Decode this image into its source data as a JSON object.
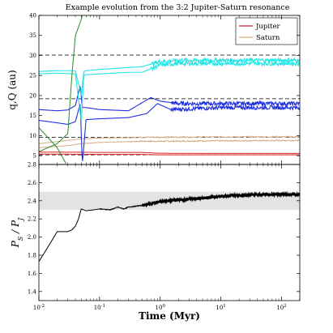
{
  "figure": {
    "title": "Example evolution from the 3:2 Jupiter-Saturn resonance",
    "xlabel": "Time (Myr)"
  },
  "chart_data": [
    {
      "type": "line",
      "name": "top-panel",
      "ylabel": "q,Q (au)",
      "xscale": "log",
      "xlim": [
        0.01,
        200
      ],
      "ylim": [
        2.8,
        40
      ],
      "yticks": [
        5,
        10,
        15,
        20,
        25,
        30,
        35,
        40
      ],
      "xtick_labels": [],
      "legend_position": "top-right",
      "legend": [
        {
          "label": "Jupiter",
          "color": "#dd2020"
        },
        {
          "label": "Saturn",
          "color": "#d8b08c"
        }
      ],
      "reference_lines": [
        5.2,
        9.6,
        19.2,
        30.1
      ],
      "colors": {
        "jupiter": "#dd2020",
        "saturn": "#d8b08c",
        "uranus": "#1f2fe0",
        "neptune": "#22e5e5",
        "ejected": "#2a8a2a"
      },
      "series": [
        {
          "key": "jupiter_q",
          "color": "#dd2020",
          "x": [
            0.01,
            0.05,
            0.1,
            0.5,
            1,
            10,
            200
          ],
          "y": [
            5.4,
            5.35,
            5.3,
            5.3,
            5.2,
            5.2,
            5.2
          ]
        },
        {
          "key": "jupiter_Q",
          "color": "#dd2020",
          "x": [
            0.01,
            0.05,
            0.1,
            0.5,
            1,
            10,
            200
          ],
          "y": [
            5.9,
            5.85,
            5.8,
            5.8,
            5.6,
            5.55,
            5.55
          ]
        },
        {
          "key": "saturn_q",
          "color": "#d8b08c",
          "x": [
            0.01,
            0.03,
            0.05,
            0.1,
            0.3,
            0.5,
            1,
            10,
            200
          ],
          "y": [
            7.0,
            7.5,
            8.0,
            8.3,
            8.5,
            8.6,
            8.6,
            8.7,
            8.8
          ]
        },
        {
          "key": "saturn_Q",
          "color": "#d8b08c",
          "x": [
            0.01,
            0.03,
            0.05,
            0.1,
            0.3,
            0.5,
            1,
            10,
            200
          ],
          "y": [
            8.0,
            8.8,
            9.2,
            9.4,
            9.5,
            9.6,
            9.6,
            9.7,
            9.7
          ]
        },
        {
          "key": "uranus_Q",
          "color": "#1f2fe0",
          "x": [
            0.01,
            0.02,
            0.03,
            0.04,
            0.048,
            0.052,
            0.06,
            0.1,
            0.3,
            0.7,
            1,
            2,
            10,
            200
          ],
          "y": [
            16.5,
            16.2,
            16.4,
            17.5,
            22.5,
            17,
            17,
            16.5,
            16.2,
            19.5,
            18.6,
            18,
            18,
            18
          ]
        },
        {
          "key": "uranus_q",
          "color": "#1f2fe0",
          "x": [
            0.01,
            0.02,
            0.03,
            0.04,
            0.048,
            0.052,
            0.06,
            0.1,
            0.3,
            0.6,
            0.9,
            1.5,
            10,
            200
          ],
          "y": [
            13.8,
            13.2,
            12.8,
            13.5,
            18,
            3.0,
            14,
            14.2,
            14.5,
            15.5,
            18,
            16.5,
            17,
            17
          ]
        },
        {
          "key": "neptune_Q",
          "color": "#22e5e5",
          "x": [
            0.01,
            0.02,
            0.04,
            0.05,
            0.055,
            0.06,
            0.1,
            0.3,
            0.5,
            1,
            2,
            10,
            200
          ],
          "y": [
            26.0,
            26.2,
            26.2,
            20,
            26,
            26.2,
            26.5,
            27.0,
            27.2,
            28.5,
            28.8,
            28.8,
            28.8
          ]
        },
        {
          "key": "neptune_q",
          "color": "#22e5e5",
          "x": [
            0.01,
            0.02,
            0.04,
            0.05,
            0.055,
            0.06,
            0.1,
            0.3,
            0.5,
            1,
            2,
            10,
            200
          ],
          "y": [
            25.4,
            25.6,
            25.4,
            13.5,
            25.0,
            25.2,
            25.4,
            25.8,
            25.8,
            27.6,
            28.0,
            28.0,
            28.0
          ]
        },
        {
          "key": "ejected_Q",
          "color": "#2a8a2a",
          "x": [
            0.01,
            0.02,
            0.03,
            0.035,
            0.04,
            0.05,
            0.056
          ],
          "y": [
            6.0,
            8.0,
            10.5,
            25,
            35,
            39,
            42
          ]
        },
        {
          "key": "ejected_q",
          "color": "#2a8a2a",
          "x": [
            0.01,
            0.02,
            0.028
          ],
          "y": [
            12.0,
            7.0,
            3.0
          ]
        }
      ],
      "noisy_bands": [
        {
          "key": "neptune_Q",
          "start": 0.7,
          "amp": 0.5
        },
        {
          "key": "neptune_q",
          "start": 0.7,
          "amp": 0.5
        },
        {
          "key": "uranus_Q",
          "start": 1.5,
          "amp": 0.5
        },
        {
          "key": "uranus_q",
          "start": 1.5,
          "amp": 0.5
        },
        {
          "key": "saturn_q",
          "start": 0.3,
          "amp": 0.15
        },
        {
          "key": "saturn_Q",
          "start": 0.3,
          "amp": 0.15
        }
      ]
    },
    {
      "type": "line",
      "name": "bottom-panel",
      "ylabel": "P_S / P_J",
      "xscale": "log",
      "xlim": [
        0.01,
        200
      ],
      "ylim": [
        1.3,
        2.8
      ],
      "yticks": [
        1.4,
        1.6,
        1.8,
        2.0,
        2.2,
        2.4,
        2.6,
        2.8
      ],
      "xticks": [
        0.01,
        0.1,
        1,
        10,
        100
      ],
      "xtick_labels": [
        {
          "base": "10",
          "exp": "-2"
        },
        {
          "base": "10",
          "exp": "-1"
        },
        {
          "base": "10",
          "exp": "0"
        },
        {
          "base": "10",
          "exp": "1"
        },
        {
          "base": "10",
          "exp": "2"
        }
      ],
      "shaded_band": [
        2.3,
        2.5
      ],
      "series": [
        {
          "key": "period_ratio",
          "color": "#000000",
          "x": [
            0.01,
            0.015,
            0.02,
            0.025,
            0.03,
            0.035,
            0.04,
            0.045,
            0.05,
            0.06,
            0.08,
            0.1,
            0.15,
            0.2,
            0.25,
            0.3,
            0.5,
            0.7,
            1,
            2,
            5,
            10,
            20,
            50,
            100,
            200
          ],
          "y": [
            1.73,
            1.92,
            2.06,
            2.06,
            2.06,
            2.08,
            2.12,
            2.2,
            2.31,
            2.29,
            2.3,
            2.31,
            2.3,
            2.33,
            2.31,
            2.33,
            2.35,
            2.37,
            2.39,
            2.41,
            2.43,
            2.45,
            2.46,
            2.47,
            2.47,
            2.47
          ]
        }
      ],
      "noisy_from": 0.5,
      "noise_amp": 0.012
    }
  ]
}
